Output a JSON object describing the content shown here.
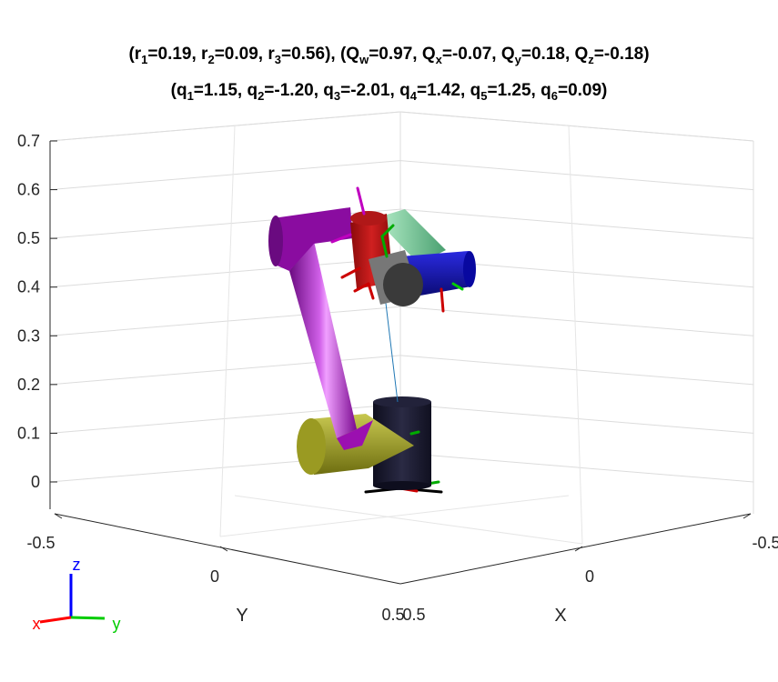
{
  "title": {
    "pose": {
      "r1": "0.19",
      "r2": "0.09",
      "r3": "0.56",
      "Qw": "0.97",
      "Qx": "-0.07",
      "Qy": "0.18",
      "Qz": "-0.18"
    },
    "joints": {
      "q1": "1.15",
      "q2": "-1.20",
      "q3": "-2.01",
      "q4": "1.42",
      "q5": "1.25",
      "q6": "0.09"
    }
  },
  "chart_data": {
    "type": "3d-robot-plot",
    "z_ticks": [
      "0.7",
      "0.6",
      "0.5",
      "0.4",
      "0.3",
      "0.2",
      "0.1",
      "0"
    ],
    "zlim": [
      0,
      0.7
    ],
    "y_ticks": [
      "-0.5",
      "0",
      "0.5"
    ],
    "x_ticks": [
      "0.5",
      "0",
      "-0.5"
    ],
    "xlabel": "X",
    "ylabel": "Y",
    "grid": true,
    "end_effector_position": {
      "x": 0.19,
      "y": 0.09,
      "z": 0.56
    },
    "end_effector_quaternion": {
      "w": 0.97,
      "x": -0.07,
      "y": 0.18,
      "z": -0.18
    },
    "joint_angles": [
      1.15,
      -1.2,
      -2.01,
      1.42,
      1.25,
      0.09
    ]
  },
  "triad": {
    "x_label": "x",
    "y_label": "y",
    "z_label": "z",
    "x_color": "#ff0000",
    "y_color": "#00cc00",
    "z_color": "#0000ff"
  },
  "colors": {
    "base": "#1a1a2e",
    "upper_arm": "#9b10b0",
    "shoulder": "#9a9a22",
    "wrist1": "#c01010",
    "wrist2": "#1010b0",
    "wrist3": "#555555",
    "link_green": "#7ed6a0"
  }
}
